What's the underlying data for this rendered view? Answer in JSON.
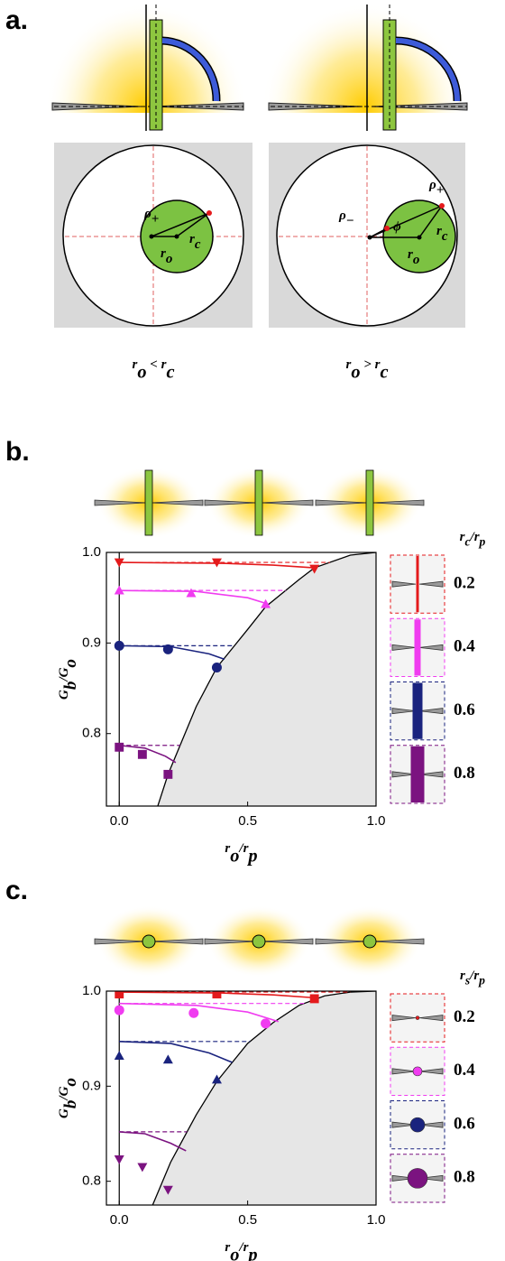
{
  "panel_a": {
    "label": "a.",
    "left": {
      "caption": [
        "r",
        "o",
        " < r",
        "c"
      ],
      "rho_plus": [
        "ρ",
        "+"
      ],
      "r_c": [
        "r",
        "c"
      ],
      "r_o": [
        "r",
        "o"
      ]
    },
    "right": {
      "caption": [
        "r",
        "o",
        " > r",
        "c"
      ],
      "rho_plus": [
        "ρ",
        "+"
      ],
      "rho_minus": [
        "ρ",
        "−"
      ],
      "phi": "ϕ",
      "r_c": [
        "r",
        "c"
      ],
      "r_o": [
        "r",
        "o"
      ]
    }
  },
  "chart_data": [
    {
      "type": "scatter",
      "panel_label": "b.",
      "legend_icon": "rod",
      "xlabel": [
        "r",
        "o",
        "/r",
        "p"
      ],
      "ylabel": [
        "G",
        "b",
        "/G",
        "o"
      ],
      "legend_title": [
        "r",
        "c",
        "/r",
        "p"
      ],
      "xlim": [
        -0.05,
        1.0
      ],
      "ylim": [
        0.72,
        1.0
      ],
      "xticks": [
        {
          "value": 0,
          "label": "0.0"
        },
        0.5,
        {
          "value": 1,
          "label": "1.0"
        }
      ],
      "yticks": [
        0.8,
        0.9,
        {
          "value": 1,
          "label": "1.0"
        }
      ],
      "boundary": {
        "x": [
          0.15,
          0.19,
          0.3,
          0.38,
          0.5,
          0.57,
          0.7,
          0.76,
          0.9,
          1.0
        ],
        "values": [
          0.72,
          0.755,
          0.83,
          0.873,
          0.915,
          0.94,
          0.97,
          0.983,
          0.997,
          1.0
        ]
      },
      "series": [
        {
          "name": "0.2",
          "color": "#e41a1c",
          "marker": "triangle-down",
          "x": [
            0,
            0.38,
            0.76
          ],
          "values": [
            0.989,
            0.989,
            0.982
          ],
          "level": 0.989,
          "model_x": [
            0,
            0.4,
            0.6,
            0.76
          ],
          "model_values": [
            0.989,
            0.988,
            0.986,
            0.983
          ]
        },
        {
          "name": "0.4",
          "color": "#f03cf0",
          "marker": "triangle-up",
          "x": [
            0,
            0.28,
            0.57
          ],
          "values": [
            0.958,
            0.955,
            0.943
          ],
          "level": 0.958,
          "model_x": [
            0,
            0.3,
            0.5,
            0.58
          ],
          "model_values": [
            0.958,
            0.957,
            0.95,
            0.943
          ]
        },
        {
          "name": "0.6",
          "color": "#1a237e",
          "marker": "circle",
          "x": [
            0,
            0.19,
            0.38
          ],
          "values": [
            0.897,
            0.893,
            0.873
          ],
          "level": 0.897,
          "model_x": [
            0,
            0.2,
            0.35,
            0.41
          ],
          "model_values": [
            0.897,
            0.896,
            0.888,
            0.882
          ]
        },
        {
          "name": "0.8",
          "color": "#7b1380",
          "marker": "square",
          "x": [
            0,
            0.09,
            0.19
          ],
          "values": [
            0.785,
            0.777,
            0.755
          ],
          "level": 0.787,
          "model_x": [
            0,
            0.1,
            0.18,
            0.22
          ],
          "model_values": [
            0.787,
            0.784,
            0.775,
            0.768
          ]
        }
      ]
    },
    {
      "type": "scatter",
      "panel_label": "c.",
      "legend_icon": "sphere",
      "xlabel": [
        "r",
        "o",
        "/r",
        "p"
      ],
      "ylabel": [
        "G",
        "b",
        "/G",
        "o"
      ],
      "legend_title": [
        "r",
        "s",
        "/r",
        "p"
      ],
      "xlim": [
        -0.05,
        1.0
      ],
      "ylim": [
        0.775,
        1.0
      ],
      "xticks": [
        {
          "value": 0,
          "label": "0.0"
        },
        0.5,
        {
          "value": 1,
          "label": "1.0"
        }
      ],
      "yticks": [
        0.8,
        0.9,
        {
          "value": 1,
          "label": "1.0"
        }
      ],
      "boundary": {
        "x": [
          0.13,
          0.2,
          0.3,
          0.38,
          0.5,
          0.6,
          0.7,
          0.8,
          0.9,
          1.0
        ],
        "values": [
          0.775,
          0.82,
          0.87,
          0.905,
          0.945,
          0.967,
          0.985,
          0.995,
          0.999,
          1.0
        ]
      },
      "series": [
        {
          "name": "0.2",
          "color": "#e41a1c",
          "marker": "square",
          "x": [
            0,
            0.38,
            0.76
          ],
          "values": [
            0.997,
            0.997,
            0.992
          ],
          "level": 0.999,
          "model_x": [
            0,
            0.4,
            0.6,
            0.76
          ],
          "model_values": [
            0.999,
            0.998,
            0.996,
            0.993
          ]
        },
        {
          "name": "0.4",
          "color": "#f03cf0",
          "marker": "circle",
          "x": [
            0,
            0.29,
            0.57
          ],
          "values": [
            0.98,
            0.977,
            0.966
          ],
          "level": 0.987,
          "model_x": [
            0,
            0.3,
            0.5,
            0.62
          ],
          "model_values": [
            0.987,
            0.985,
            0.978,
            0.968
          ]
        },
        {
          "name": "0.6",
          "color": "#1a237e",
          "marker": "triangle-up",
          "x": [
            0,
            0.19,
            0.38
          ],
          "values": [
            0.932,
            0.928,
            0.907
          ],
          "level": 0.947,
          "model_x": [
            0,
            0.2,
            0.35,
            0.44
          ],
          "model_values": [
            0.947,
            0.945,
            0.935,
            0.925
          ]
        },
        {
          "name": "0.8",
          "color": "#7b1380",
          "marker": "triangle-down",
          "x": [
            0,
            0.09,
            0.19
          ],
          "values": [
            0.823,
            0.815,
            0.791
          ],
          "level": 0.852,
          "model_x": [
            0,
            0.1,
            0.2,
            0.26
          ],
          "model_values": [
            0.852,
            0.85,
            0.84,
            0.832
          ]
        }
      ]
    }
  ]
}
